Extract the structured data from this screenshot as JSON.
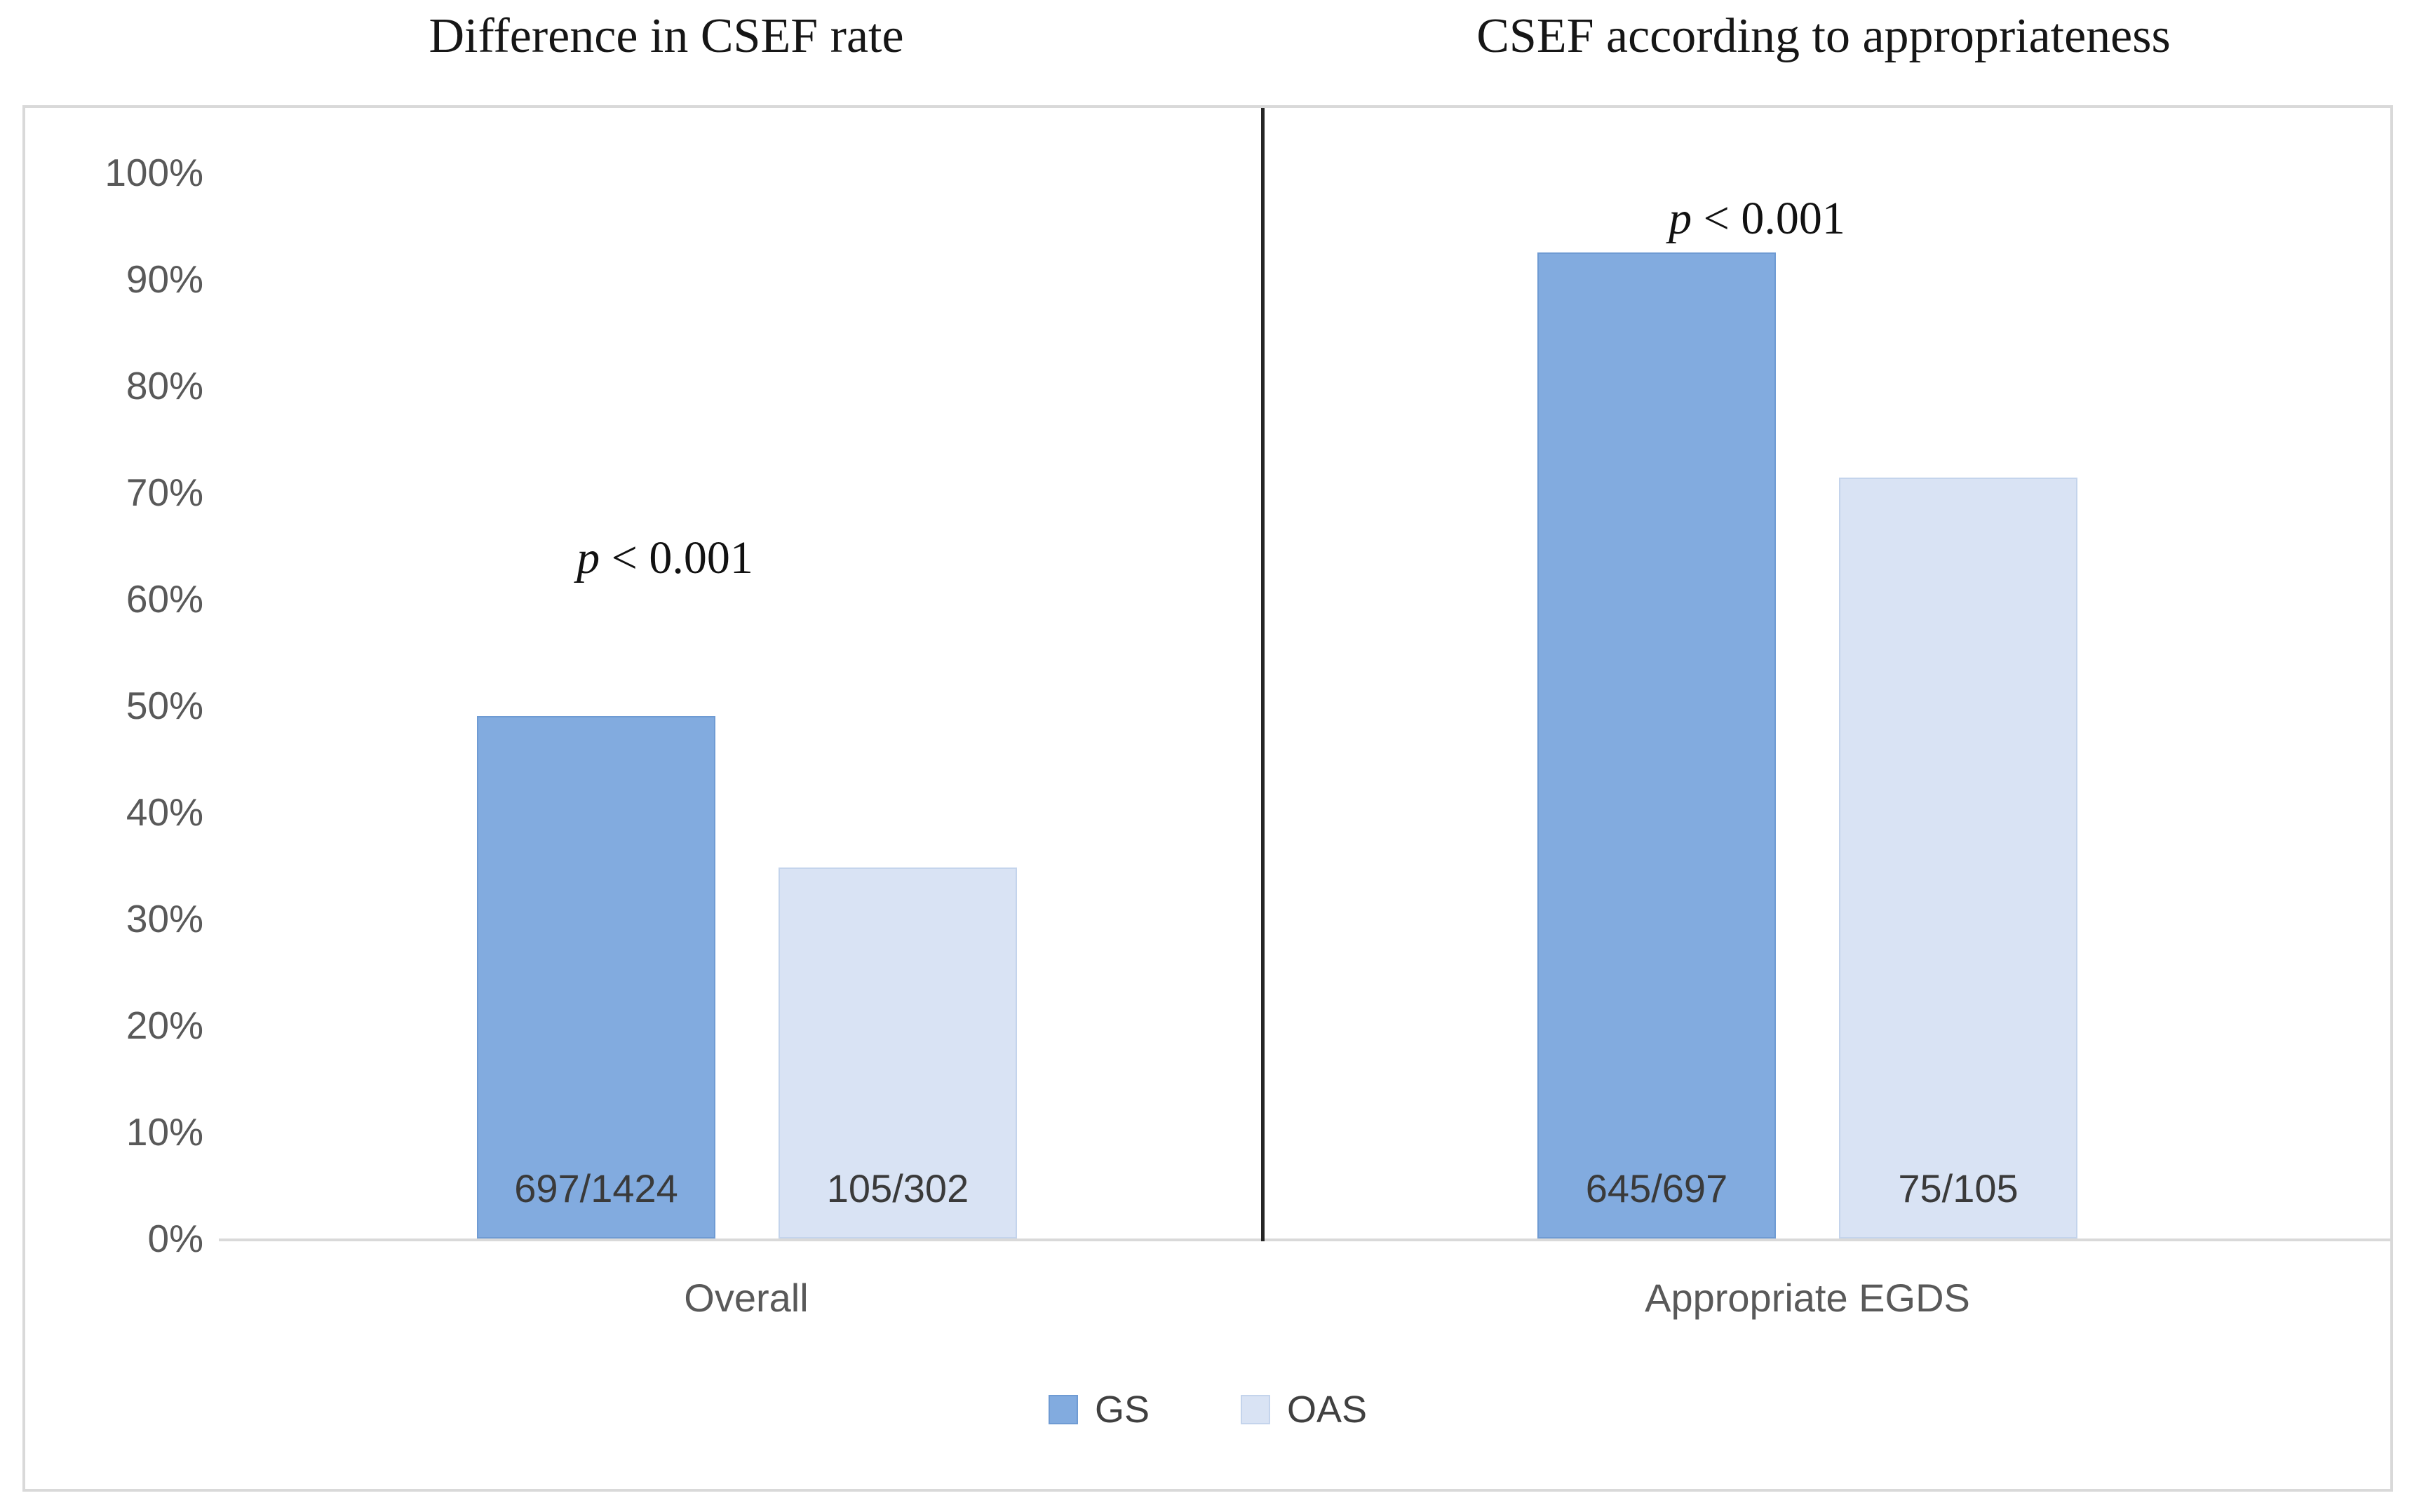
{
  "figure": {
    "background": "#ffffff",
    "box_border_color": "#d9d9d9",
    "axis_line_color": "#d9d9d9",
    "divider_color": "#262626",
    "axis_text_color": "#595959",
    "label_text_color": "#3a3a3a"
  },
  "axis": {
    "tick_labels": [
      "100%",
      "90%",
      "80%",
      "70%",
      "60%",
      "50%",
      "40%",
      "30%",
      "20%",
      "10%",
      "0%"
    ]
  },
  "legend": {
    "position": "bottom-center",
    "items": [
      {
        "label": "GS",
        "color": "#82abdf",
        "border": "#6f9bd3"
      },
      {
        "label": "OAS",
        "color": "#d9e3f4",
        "border": "#c4d4ec"
      }
    ]
  },
  "chart_data": [
    {
      "type": "bar",
      "title": "Difference in CSEF rate",
      "categories": [
        "Overall"
      ],
      "series": [
        {
          "name": "GS",
          "values": [
            49.0
          ],
          "bar_labels": [
            "697/1424"
          ],
          "color": "#82abdf",
          "border": "#6f9bd3"
        },
        {
          "name": "OAS",
          "values": [
            34.8
          ],
          "bar_labels": [
            "105/302"
          ],
          "color": "#d9e3f4",
          "border": "#c4d4ec"
        }
      ],
      "annotation": {
        "italic": "p",
        "rest": "< 0.001"
      },
      "xlabel": "",
      "ylabel": "",
      "ylim": [
        0,
        100
      ],
      "grid": false
    },
    {
      "type": "bar",
      "title": "CSEF according to appropriateness",
      "categories": [
        "Appropriate EGDS"
      ],
      "series": [
        {
          "name": "GS",
          "values": [
            92.5
          ],
          "bar_labels": [
            "645/697"
          ],
          "color": "#82abdf",
          "border": "#6f9bd3"
        },
        {
          "name": "OAS",
          "values": [
            71.4
          ],
          "bar_labels": [
            "75/105"
          ],
          "color": "#d9e3f4",
          "border": "#c4d4ec"
        }
      ],
      "annotation": {
        "italic": "p",
        "rest": "< 0.001"
      },
      "xlabel": "",
      "ylabel": "",
      "ylim": [
        0,
        100
      ],
      "grid": false
    }
  ]
}
